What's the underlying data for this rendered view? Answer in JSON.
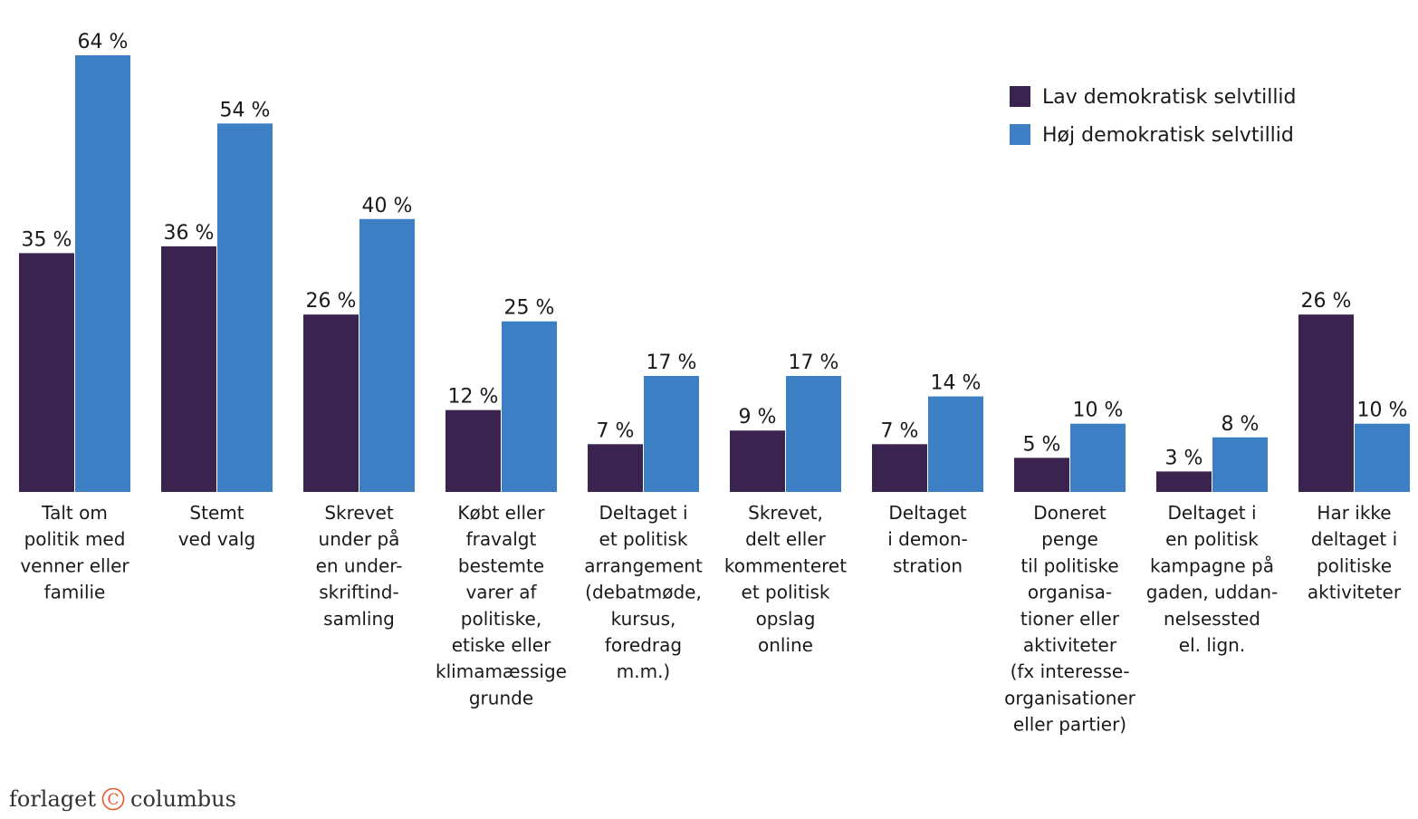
{
  "chart_data": {
    "type": "bar",
    "title": "",
    "xlabel": "",
    "ylabel": "",
    "ylim": [
      0,
      64
    ],
    "grid": false,
    "legend_position": "top-right",
    "value_suffix": " %",
    "categories": [
      [
        "Talt om",
        "politik med",
        "venner eller",
        "familie"
      ],
      [
        "Stemt",
        "ved valg"
      ],
      [
        "Skrevet",
        "under på",
        "en under-",
        "skriftind-",
        "samling"
      ],
      [
        "Købt eller",
        "fravalgt",
        "bestemte",
        "varer af",
        "politiske,",
        "etiske eller",
        "klimamæssige",
        "grunde"
      ],
      [
        "Deltaget i",
        "et politisk",
        "arrangement",
        "(debatmøde,",
        "kursus,",
        "foredrag",
        "m.m.)"
      ],
      [
        "Skrevet,",
        "delt eller",
        "kommenteret",
        "et politisk",
        "opslag",
        "online"
      ],
      [
        "Deltaget",
        "i demon-",
        "stration"
      ],
      [
        "Doneret",
        "penge",
        "til politiske",
        "organisa-",
        "tioner eller",
        "aktiviteter",
        "(fx interesse-",
        "organisationer",
        "eller partier)"
      ],
      [
        "Deltaget i",
        "en politisk",
        "kampagne på",
        "gaden, uddan-",
        "nelsessted",
        "el. lign."
      ],
      [
        "Har ikke",
        "deltaget i",
        "politiske",
        "aktiviteter"
      ]
    ],
    "series": [
      {
        "name": "Lav demokratisk selvtillid",
        "color": "#3b2350",
        "values": [
          35,
          36,
          26,
          12,
          7,
          9,
          7,
          5,
          3,
          26
        ]
      },
      {
        "name": "Høj demokratisk selvtillid",
        "color": "#3d7fc4",
        "values": [
          64,
          54,
          40,
          25,
          17,
          17,
          14,
          10,
          8,
          10
        ]
      }
    ]
  },
  "footer": {
    "logo_left": "forlaget",
    "logo_right": "columbus",
    "logo_mark": "C",
    "logo_color": "#e8582a"
  }
}
